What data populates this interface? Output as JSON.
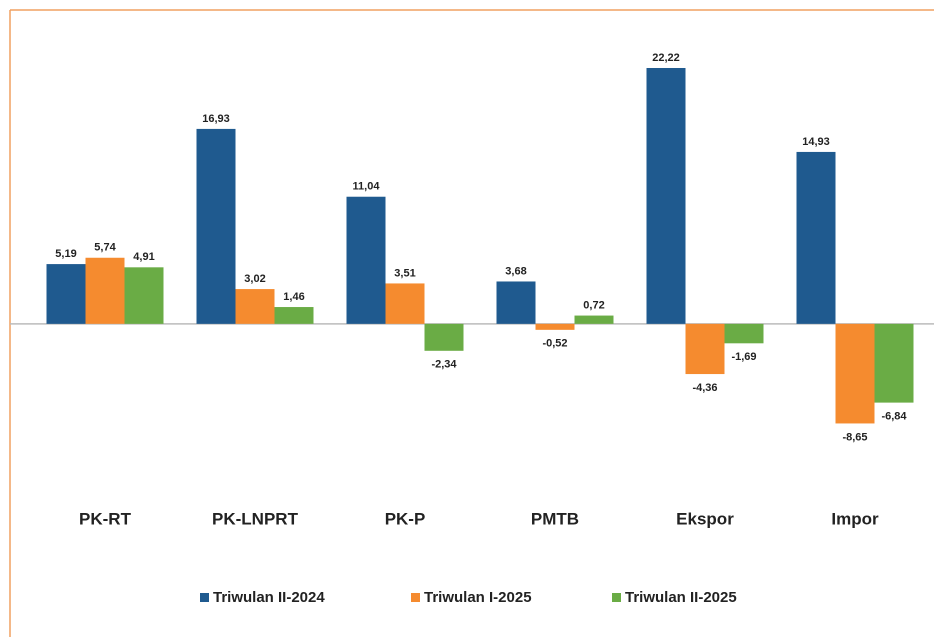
{
  "chart_data": {
    "type": "bar",
    "categories": [
      "PK-RT",
      "PK-LNPRT",
      "PK-P",
      "PMTB",
      "Ekspor",
      "Impor"
    ],
    "series": [
      {
        "name": "Triwulan II-2024",
        "color": "#1f5a8f",
        "values": [
          5.19,
          16.93,
          11.04,
          3.68,
          22.22,
          14.93
        ],
        "value_labels": [
          "5,19",
          "16,93",
          "11,04",
          "3,68",
          "22,22",
          "14,93"
        ]
      },
      {
        "name": "Triwulan I-2025",
        "color": "#f58b2f",
        "values": [
          5.74,
          3.02,
          3.51,
          -0.52,
          -4.36,
          -8.65
        ],
        "value_labels": [
          "5,74",
          "3,02",
          "3,51",
          "-0,52",
          "-4,36",
          "-8,65"
        ]
      },
      {
        "name": "Triwulan II-2025",
        "color": "#6aac45",
        "values": [
          4.91,
          1.46,
          -2.34,
          0.72,
          -1.69,
          -6.84
        ],
        "value_labels": [
          "4,91",
          "1,46",
          "-2,34",
          "0,72",
          "-1,69",
          "-6,84"
        ]
      }
    ],
    "ylim": [
      -10,
      24
    ],
    "legend": "bottom"
  }
}
